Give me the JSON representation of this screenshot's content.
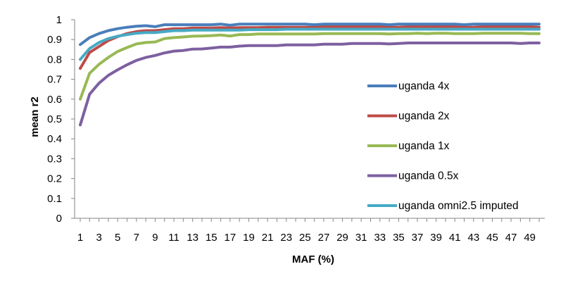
{
  "chart_data": {
    "type": "line",
    "title": "",
    "xlabel": "MAF (%)",
    "ylabel": "mean r2",
    "ylim": [
      0,
      1
    ],
    "yticks": [
      "0",
      "0.1",
      "0.2",
      "0.3",
      "0.4",
      "0.5",
      "0.6",
      "0.7",
      "0.8",
      "0.9",
      "1"
    ],
    "x": [
      1,
      2,
      3,
      4,
      5,
      6,
      7,
      8,
      9,
      10,
      11,
      12,
      13,
      14,
      15,
      16,
      17,
      18,
      19,
      20,
      21,
      22,
      23,
      24,
      25,
      26,
      27,
      28,
      29,
      30,
      31,
      32,
      33,
      34,
      35,
      36,
      37,
      38,
      39,
      40,
      41,
      42,
      43,
      44,
      45,
      46,
      47,
      48,
      49,
      50
    ],
    "xtick_labels": [
      "1",
      "3",
      "5",
      "7",
      "9",
      "11",
      "13",
      "15",
      "17",
      "19",
      "21",
      "23",
      "25",
      "27",
      "29",
      "31",
      "33",
      "35",
      "37",
      "39",
      "41",
      "43",
      "45",
      "47",
      "49"
    ],
    "grid": false,
    "legend_position": "right",
    "series": [
      {
        "name": "uganda 4x",
        "color": "#4a7ebb",
        "values": [
          0.875,
          0.91,
          0.93,
          0.945,
          0.955,
          0.962,
          0.967,
          0.97,
          0.965,
          0.975,
          0.975,
          0.975,
          0.975,
          0.975,
          0.975,
          0.978,
          0.972,
          0.978,
          0.978,
          0.978,
          0.978,
          0.978,
          0.978,
          0.978,
          0.978,
          0.975,
          0.978,
          0.978,
          0.978,
          0.978,
          0.978,
          0.978,
          0.978,
          0.975,
          0.978,
          0.978,
          0.978,
          0.978,
          0.978,
          0.978,
          0.978,
          0.975,
          0.978,
          0.978,
          0.978,
          0.978,
          0.978,
          0.978,
          0.978,
          0.978
        ]
      },
      {
        "name": "uganda 2x",
        "color": "#be4b48",
        "values": [
          0.755,
          0.835,
          0.865,
          0.895,
          0.915,
          0.93,
          0.94,
          0.945,
          0.945,
          0.95,
          0.955,
          0.955,
          0.958,
          0.958,
          0.958,
          0.96,
          0.958,
          0.96,
          0.96,
          0.96,
          0.962,
          0.962,
          0.962,
          0.962,
          0.962,
          0.962,
          0.965,
          0.965,
          0.965,
          0.965,
          0.965,
          0.965,
          0.965,
          0.962,
          0.962,
          0.965,
          0.965,
          0.965,
          0.965,
          0.965,
          0.965,
          0.962,
          0.962,
          0.965,
          0.965,
          0.965,
          0.965,
          0.965,
          0.965,
          0.962
        ]
      },
      {
        "name": "uganda 1x",
        "color": "#98b954",
        "values": [
          0.6,
          0.73,
          0.775,
          0.81,
          0.84,
          0.86,
          0.878,
          0.885,
          0.888,
          0.905,
          0.91,
          0.913,
          0.917,
          0.918,
          0.92,
          0.923,
          0.918,
          0.925,
          0.925,
          0.928,
          0.928,
          0.928,
          0.928,
          0.928,
          0.928,
          0.928,
          0.93,
          0.93,
          0.93,
          0.93,
          0.93,
          0.93,
          0.93,
          0.928,
          0.93,
          0.93,
          0.932,
          0.93,
          0.932,
          0.932,
          0.93,
          0.93,
          0.93,
          0.932,
          0.932,
          0.932,
          0.932,
          0.932,
          0.93,
          0.93
        ]
      },
      {
        "name": "uganda 0.5x",
        "color": "#7d60a0",
        "values": [
          0.47,
          0.625,
          0.68,
          0.72,
          0.748,
          0.773,
          0.795,
          0.81,
          0.82,
          0.833,
          0.842,
          0.845,
          0.852,
          0.853,
          0.857,
          0.862,
          0.862,
          0.867,
          0.87,
          0.87,
          0.87,
          0.87,
          0.873,
          0.873,
          0.873,
          0.873,
          0.877,
          0.877,
          0.877,
          0.88,
          0.88,
          0.88,
          0.88,
          0.878,
          0.88,
          0.883,
          0.883,
          0.883,
          0.883,
          0.883,
          0.883,
          0.883,
          0.883,
          0.883,
          0.883,
          0.883,
          0.883,
          0.88,
          0.883,
          0.883
        ]
      },
      {
        "name": "uganda omni2.5 imputed",
        "color": "#46aac5",
        "values": [
          0.8,
          0.855,
          0.885,
          0.905,
          0.917,
          0.925,
          0.932,
          0.935,
          0.935,
          0.94,
          0.945,
          0.945,
          0.948,
          0.948,
          0.948,
          0.948,
          0.948,
          0.948,
          0.95,
          0.95,
          0.95,
          0.95,
          0.952,
          0.952,
          0.952,
          0.952,
          0.952,
          0.952,
          0.952,
          0.952,
          0.952,
          0.952,
          0.952,
          0.952,
          0.952,
          0.952,
          0.952,
          0.952,
          0.952,
          0.952,
          0.952,
          0.952,
          0.952,
          0.952,
          0.952,
          0.952,
          0.952,
          0.952,
          0.952,
          0.952
        ]
      }
    ]
  }
}
